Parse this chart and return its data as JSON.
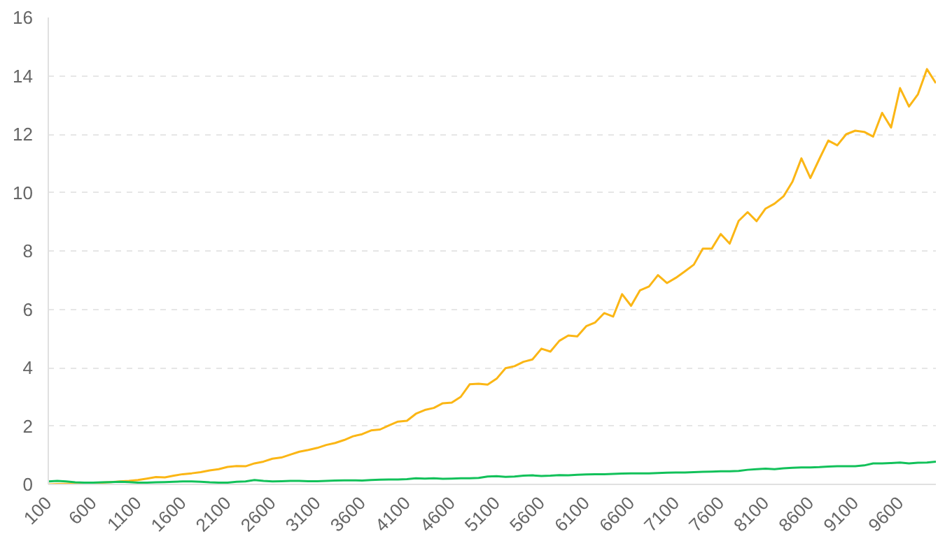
{
  "chart_data": {
    "type": "line",
    "categories": [
      "100",
      null,
      null,
      null,
      null,
      "600",
      null,
      null,
      null,
      null,
      "1100",
      null,
      null,
      null,
      null,
      "1600",
      null,
      null,
      null,
      null,
      "2100",
      null,
      null,
      null,
      null,
      "2600",
      null,
      null,
      null,
      null,
      "3100",
      null,
      null,
      null,
      null,
      "3600",
      null,
      null,
      null,
      null,
      "4100",
      null,
      null,
      null,
      null,
      "4600",
      null,
      null,
      null,
      null,
      "5100",
      null,
      null,
      null,
      null,
      "5600",
      null,
      null,
      null,
      null,
      "6100",
      null,
      null,
      null,
      null,
      "6600",
      null,
      null,
      null,
      null,
      "7100",
      null,
      null,
      null,
      null,
      "7600",
      null,
      null,
      null,
      null,
      "8100",
      null,
      null,
      null,
      null,
      "8600",
      null,
      null,
      null,
      null,
      "9100",
      null,
      null,
      null,
      null,
      "9600",
      null,
      null,
      null,
      null
    ],
    "series": [
      {
        "color": "#fbb615",
        "values": [
          0,
          0.01,
          0.02,
          0.03,
          0.04,
          0.05,
          0.06,
          0.08,
          0.1,
          0.12,
          0.15,
          0.2,
          0.25,
          0.24,
          0.3,
          0.35,
          0.38,
          0.42,
          0.48,
          0.52,
          0.6,
          0.63,
          0.62,
          0.72,
          0.78,
          0.88,
          0.92,
          1.02,
          1.12,
          1.18,
          1.25,
          1.35,
          1.42,
          1.52,
          1.65,
          1.72,
          1.85,
          1.88,
          2.02,
          2.15,
          2.18,
          2.42,
          2.55,
          2.62,
          2.78,
          2.8,
          3.0,
          3.43,
          3.45,
          3.42,
          3.62,
          3.98,
          4.05,
          4.2,
          4.28,
          4.65,
          4.55,
          4.92,
          5.1,
          5.07,
          5.42,
          5.55,
          5.87,
          5.75,
          6.52,
          6.12,
          6.65,
          6.78,
          7.17,
          6.9,
          7.08,
          7.3,
          7.53,
          8.08,
          8.08,
          8.58,
          8.25,
          9.03,
          9.33,
          9.02,
          9.45,
          9.62,
          9.87,
          10.37,
          11.17,
          10.5,
          11.15,
          11.78,
          11.62,
          12.0,
          12.12,
          12.08,
          11.92,
          12.73,
          12.23,
          13.58,
          12.95,
          13.37,
          14.23,
          13.75
        ]
      },
      {
        "color": "#12c15a",
        "values": [
          0.1,
          0.12,
          0.1,
          0.07,
          0.06,
          0.06,
          0.07,
          0.08,
          0.09,
          0.08,
          0.06,
          0.06,
          0.07,
          0.08,
          0.09,
          0.1,
          0.1,
          0.09,
          0.07,
          0.06,
          0.06,
          0.09,
          0.1,
          0.15,
          0.12,
          0.1,
          0.11,
          0.12,
          0.12,
          0.11,
          0.11,
          0.12,
          0.13,
          0.14,
          0.14,
          0.13,
          0.15,
          0.16,
          0.17,
          0.17,
          0.18,
          0.21,
          0.2,
          0.21,
          0.19,
          0.2,
          0.21,
          0.21,
          0.22,
          0.27,
          0.28,
          0.26,
          0.27,
          0.3,
          0.31,
          0.29,
          0.3,
          0.32,
          0.31,
          0.33,
          0.34,
          0.35,
          0.35,
          0.36,
          0.37,
          0.38,
          0.38,
          0.38,
          0.39,
          0.4,
          0.41,
          0.41,
          0.42,
          0.43,
          0.44,
          0.45,
          0.45,
          0.46,
          0.5,
          0.52,
          0.54,
          0.52,
          0.55,
          0.57,
          0.58,
          0.58,
          0.59,
          0.61,
          0.62,
          0.62,
          0.62,
          0.65,
          0.72,
          0.72,
          0.73,
          0.75,
          0.72,
          0.74,
          0.75,
          0.78
        ]
      }
    ],
    "ylim": [
      0,
      16
    ],
    "yticks": [
      0,
      2,
      4,
      6,
      8,
      10,
      12,
      14,
      16
    ],
    "grid": "y",
    "marker": "none",
    "line_style": "solid"
  }
}
